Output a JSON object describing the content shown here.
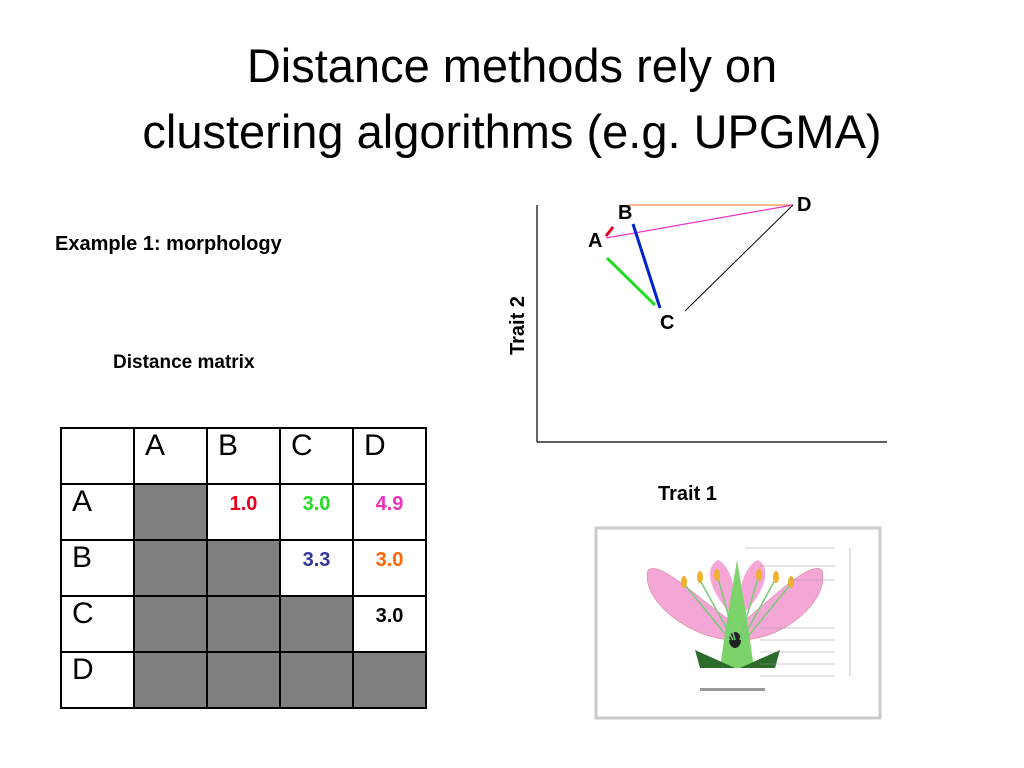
{
  "title": [
    "Distance methods rely on",
    "clustering algorithms (e.g. UPGMA)"
  ],
  "example_label": "Example 1:  morphology",
  "matrix_label": "Distance matrix",
  "table": {
    "columns": [
      "A",
      "B",
      "C",
      "D"
    ],
    "rows": [
      {
        "label": "A",
        "cells": [
          null,
          {
            "text": "1.0",
            "color": "#e8001c"
          },
          {
            "text": "3.0",
            "color": "#22dd22"
          },
          {
            "text": "4.9",
            "color": "#ee33bb"
          }
        ]
      },
      {
        "label": "B",
        "cells": [
          null,
          null,
          {
            "text": "3.3",
            "color": "#333399"
          },
          {
            "text": "3.0",
            "color": "#ff6600"
          }
        ]
      },
      {
        "label": "C",
        "cells": [
          null,
          null,
          null,
          {
            "text": "3.0",
            "color": "#000000"
          }
        ]
      },
      {
        "label": "D",
        "cells": [
          null,
          null,
          null,
          null
        ]
      }
    ]
  },
  "plot": {
    "x_label": "Trait 1",
    "y_label": "Trait 2",
    "points": [
      "A",
      "B",
      "C",
      "D"
    ]
  }
}
